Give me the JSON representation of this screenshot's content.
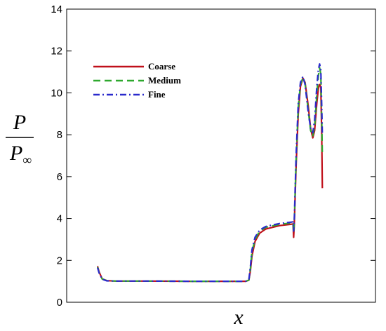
{
  "chart_data": {
    "type": "line",
    "xlabel": "x",
    "ylabel": {
      "numerator": "P",
      "denominator": "P",
      "subscript": "∞"
    },
    "xlim": [
      0,
      1
    ],
    "ylim": [
      0,
      14
    ],
    "yticks": [
      0,
      2,
      4,
      6,
      8,
      10,
      12,
      14
    ],
    "x_tick_labels_shown": false,
    "grid": false,
    "legend_position": "top-left",
    "series": [
      {
        "name": "Coarse",
        "color": "#c0101a",
        "dash": "solid",
        "points": [
          [
            0.1,
            1.72
          ],
          [
            0.105,
            1.45
          ],
          [
            0.115,
            1.12
          ],
          [
            0.13,
            1.03
          ],
          [
            0.16,
            1.01
          ],
          [
            0.25,
            1.01
          ],
          [
            0.4,
            1.0
          ],
          [
            0.5,
            1.0
          ],
          [
            0.58,
            1.0
          ],
          [
            0.59,
            1.05
          ],
          [
            0.595,
            1.5
          ],
          [
            0.6,
            2.2
          ],
          [
            0.61,
            2.9
          ],
          [
            0.625,
            3.3
          ],
          [
            0.645,
            3.5
          ],
          [
            0.69,
            3.66
          ],
          [
            0.725,
            3.72
          ],
          [
            0.733,
            3.74
          ],
          [
            0.735,
            3.1
          ],
          [
            0.737,
            3.7
          ],
          [
            0.743,
            6.5
          ],
          [
            0.75,
            9.0
          ],
          [
            0.757,
            10.3
          ],
          [
            0.765,
            10.7
          ],
          [
            0.772,
            10.5
          ],
          [
            0.782,
            9.4
          ],
          [
            0.79,
            8.3
          ],
          [
            0.797,
            7.85
          ],
          [
            0.803,
            8.2
          ],
          [
            0.81,
            9.5
          ],
          [
            0.815,
            10.2
          ],
          [
            0.819,
            10.4
          ],
          [
            0.823,
            10.3
          ],
          [
            0.826,
            8.0
          ],
          [
            0.828,
            5.45
          ]
        ]
      },
      {
        "name": "Medium",
        "color": "#2ea82e",
        "dash": "10,6",
        "points": [
          [
            0.1,
            1.68
          ],
          [
            0.105,
            1.42
          ],
          [
            0.115,
            1.11
          ],
          [
            0.13,
            1.03
          ],
          [
            0.16,
            1.01
          ],
          [
            0.25,
            1.01
          ],
          [
            0.4,
            1.0
          ],
          [
            0.5,
            1.0
          ],
          [
            0.58,
            1.0
          ],
          [
            0.59,
            1.06
          ],
          [
            0.595,
            1.6
          ],
          [
            0.6,
            2.4
          ],
          [
            0.61,
            3.0
          ],
          [
            0.625,
            3.4
          ],
          [
            0.645,
            3.58
          ],
          [
            0.69,
            3.72
          ],
          [
            0.725,
            3.78
          ],
          [
            0.733,
            3.8
          ],
          [
            0.735,
            3.3
          ],
          [
            0.737,
            3.8
          ],
          [
            0.743,
            6.8
          ],
          [
            0.75,
            9.3
          ],
          [
            0.757,
            10.4
          ],
          [
            0.765,
            10.72
          ],
          [
            0.772,
            10.45
          ],
          [
            0.782,
            9.2
          ],
          [
            0.79,
            8.2
          ],
          [
            0.797,
            7.95
          ],
          [
            0.803,
            8.4
          ],
          [
            0.81,
            9.9
          ],
          [
            0.815,
            10.8
          ],
          [
            0.819,
            11.2
          ],
          [
            0.823,
            10.9
          ],
          [
            0.826,
            8.8
          ],
          [
            0.828,
            7.0
          ]
        ]
      },
      {
        "name": "Fine",
        "color": "#2a2acc",
        "dash": "9,4,2,4",
        "points": [
          [
            0.1,
            1.65
          ],
          [
            0.105,
            1.4
          ],
          [
            0.115,
            1.1
          ],
          [
            0.13,
            1.02
          ],
          [
            0.16,
            1.01
          ],
          [
            0.25,
            1.01
          ],
          [
            0.4,
            1.0
          ],
          [
            0.5,
            1.0
          ],
          [
            0.58,
            1.0
          ],
          [
            0.59,
            1.08
          ],
          [
            0.595,
            1.7
          ],
          [
            0.6,
            2.5
          ],
          [
            0.61,
            3.1
          ],
          [
            0.625,
            3.45
          ],
          [
            0.645,
            3.62
          ],
          [
            0.69,
            3.76
          ],
          [
            0.725,
            3.82
          ],
          [
            0.733,
            3.84
          ],
          [
            0.735,
            3.4
          ],
          [
            0.737,
            3.9
          ],
          [
            0.743,
            7.0
          ],
          [
            0.75,
            9.5
          ],
          [
            0.757,
            10.5
          ],
          [
            0.765,
            10.78
          ],
          [
            0.772,
            10.4
          ],
          [
            0.782,
            9.1
          ],
          [
            0.79,
            8.3
          ],
          [
            0.797,
            8.1
          ],
          [
            0.803,
            8.7
          ],
          [
            0.81,
            10.3
          ],
          [
            0.815,
            11.1
          ],
          [
            0.819,
            11.38
          ],
          [
            0.823,
            11.1
          ],
          [
            0.826,
            9.4
          ],
          [
            0.828,
            8.0
          ]
        ]
      }
    ]
  }
}
